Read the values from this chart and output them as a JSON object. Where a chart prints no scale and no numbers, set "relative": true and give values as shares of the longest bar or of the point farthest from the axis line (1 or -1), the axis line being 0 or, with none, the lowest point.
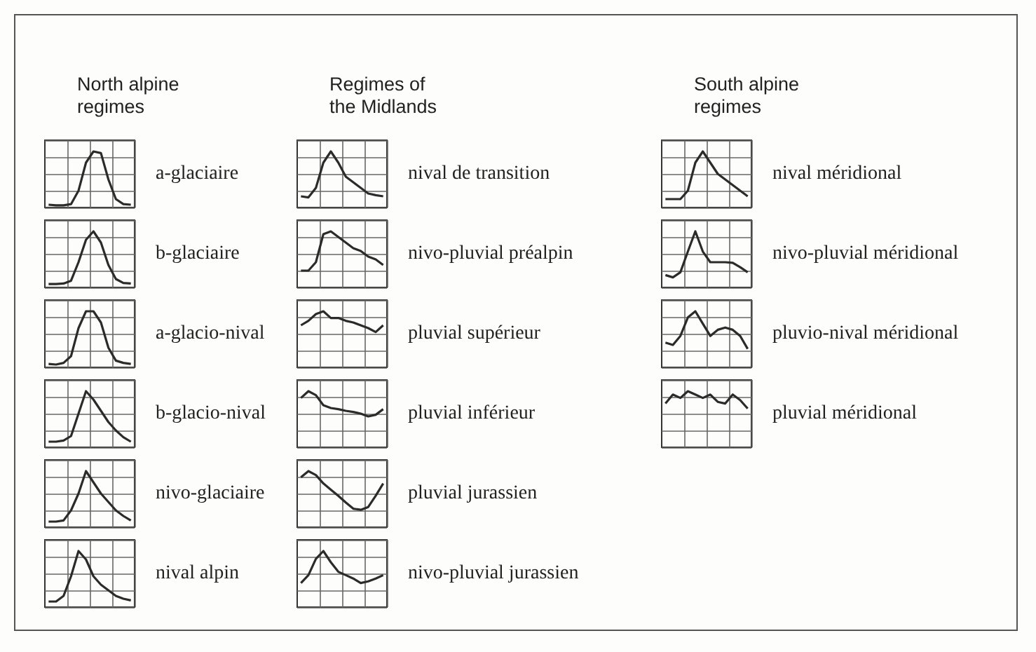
{
  "chart_data": [
    {
      "type": "line",
      "annotations": [
        "North alpine\nregimes"
      ],
      "legend": "right",
      "relative": true,
      "grid": true,
      "marker": "none",
      "categories": [
        null,
        null,
        null,
        null,
        null,
        null,
        null,
        null,
        null,
        null,
        null,
        null
      ],
      "series": [
        {
          "name": "a-glaciaire",
          "color": "#2b2b2b",
          "values": [
            0.05,
            0.04,
            0.04,
            0.06,
            0.3,
            0.8,
            1,
            0.97,
            0.5,
            0.15,
            0.06,
            0.05
          ]
        }
      ]
    },
    {
      "type": "line",
      "legend": "right",
      "relative": true,
      "grid": true,
      "marker": "none",
      "categories": [
        null,
        null,
        null,
        null,
        null,
        null,
        null,
        null,
        null,
        null,
        null,
        null
      ],
      "series": [
        {
          "name": "b-glaciaire",
          "color": "#2b2b2b",
          "values": [
            0.06,
            0.06,
            0.07,
            0.12,
            0.45,
            0.85,
            1,
            0.8,
            0.4,
            0.15,
            0.08,
            0.07
          ]
        }
      ]
    },
    {
      "type": "line",
      "legend": "right",
      "relative": true,
      "grid": true,
      "marker": "none",
      "categories": [
        null,
        null,
        null,
        null,
        null,
        null,
        null,
        null,
        null,
        null,
        null,
        null
      ],
      "series": [
        {
          "name": "a-glacio-nival",
          "color": "#2b2b2b",
          "values": [
            0.06,
            0.05,
            0.08,
            0.2,
            0.7,
            1,
            1,
            0.8,
            0.35,
            0.12,
            0.08,
            0.06
          ]
        }
      ]
    },
    {
      "type": "line",
      "legend": "right",
      "relative": true,
      "grid": true,
      "marker": "none",
      "categories": [
        null,
        null,
        null,
        null,
        null,
        null,
        null,
        null,
        null,
        null,
        null,
        null
      ],
      "series": [
        {
          "name": "b-glacio-nival",
          "color": "#2b2b2b",
          "values": [
            0.1,
            0.1,
            0.12,
            0.2,
            0.6,
            1,
            0.85,
            0.65,
            0.45,
            0.3,
            0.18,
            0.1
          ]
        }
      ]
    },
    {
      "type": "line",
      "legend": "right",
      "relative": true,
      "grid": true,
      "marker": "none",
      "categories": [
        null,
        null,
        null,
        null,
        null,
        null,
        null,
        null,
        null,
        null,
        null,
        null
      ],
      "series": [
        {
          "name": "nivo-glaciaire",
          "color": "#2b2b2b",
          "values": [
            0.1,
            0.1,
            0.12,
            0.3,
            0.6,
            1,
            0.8,
            0.6,
            0.45,
            0.3,
            0.2,
            0.12
          ]
        }
      ]
    },
    {
      "type": "line",
      "legend": "right",
      "relative": true,
      "grid": true,
      "marker": "none",
      "categories": [
        null,
        null,
        null,
        null,
        null,
        null,
        null,
        null,
        null,
        null,
        null,
        null
      ],
      "series": [
        {
          "name": "nival alpin",
          "color": "#2b2b2b",
          "values": [
            0.1,
            0.1,
            0.2,
            0.55,
            1,
            0.85,
            0.55,
            0.4,
            0.3,
            0.2,
            0.15,
            0.12
          ]
        }
      ]
    },
    {
      "type": "line",
      "annotations": [
        "Regimes of\nthe Midlands"
      ],
      "legend": "right",
      "relative": true,
      "grid": true,
      "marker": "none",
      "categories": [
        null,
        null,
        null,
        null,
        null,
        null,
        null,
        null,
        null,
        null,
        null,
        null
      ],
      "series": [
        {
          "name": "nival de transition",
          "color": "#2b2b2b",
          "values": [
            0.2,
            0.18,
            0.35,
            0.8,
            1,
            0.8,
            0.55,
            0.45,
            0.35,
            0.25,
            0.22,
            0.2
          ]
        }
      ]
    },
    {
      "type": "line",
      "legend": "right",
      "relative": true,
      "grid": true,
      "marker": "none",
      "categories": [
        null,
        null,
        null,
        null,
        null,
        null,
        null,
        null,
        null,
        null,
        null,
        null
      ],
      "series": [
        {
          "name": "nivo-pluvial préalpin",
          "color": "#2b2b2b",
          "values": [
            0.3,
            0.3,
            0.45,
            0.95,
            1,
            0.9,
            0.8,
            0.7,
            0.65,
            0.55,
            0.5,
            0.4
          ]
        }
      ]
    },
    {
      "type": "line",
      "legend": "right",
      "relative": true,
      "grid": true,
      "marker": "none",
      "categories": [
        null,
        null,
        null,
        null,
        null,
        null,
        null,
        null,
        null,
        null,
        null,
        null
      ],
      "series": [
        {
          "name": "pluvial supérieur",
          "color": "#2b2b2b",
          "values": [
            0.75,
            0.83,
            0.95,
            1,
            0.88,
            0.88,
            0.83,
            0.8,
            0.75,
            0.7,
            0.63,
            0.75
          ]
        }
      ]
    },
    {
      "type": "line",
      "legend": "right",
      "relative": true,
      "grid": true,
      "marker": "none",
      "categories": [
        null,
        null,
        null,
        null,
        null,
        null,
        null,
        null,
        null,
        null,
        null,
        null
      ],
      "series": [
        {
          "name": "pluvial inférieur",
          "color": "#2b2b2b",
          "values": [
            0.88,
            1,
            0.93,
            0.75,
            0.7,
            0.68,
            0.65,
            0.63,
            0.6,
            0.55,
            0.58,
            0.68
          ]
        }
      ]
    },
    {
      "type": "line",
      "legend": "right",
      "relative": true,
      "grid": true,
      "marker": "none",
      "categories": [
        null,
        null,
        null,
        null,
        null,
        null,
        null,
        null,
        null,
        null,
        null,
        null
      ],
      "series": [
        {
          "name": "pluvial jurassien",
          "color": "#2b2b2b",
          "values": [
            0.89,
            1,
            0.93,
            0.78,
            0.67,
            0.56,
            0.44,
            0.33,
            0.31,
            0.36,
            0.56,
            0.78
          ]
        }
      ]
    },
    {
      "type": "line",
      "legend": "right",
      "relative": true,
      "grid": true,
      "marker": "none",
      "categories": [
        null,
        null,
        null,
        null,
        null,
        null,
        null,
        null,
        null,
        null,
        null,
        null
      ],
      "series": [
        {
          "name": "nivo-pluvial jurassien",
          "color": "#2b2b2b",
          "values": [
            0.43,
            0.57,
            0.86,
            1,
            0.8,
            0.63,
            0.57,
            0.51,
            0.43,
            0.46,
            0.51,
            0.57
          ]
        }
      ]
    },
    {
      "type": "line",
      "annotations": [
        "South alpine\nregimes"
      ],
      "legend": "right",
      "relative": true,
      "grid": true,
      "marker": "none",
      "categories": [
        null,
        null,
        null,
        null,
        null,
        null,
        null,
        null,
        null,
        null,
        null,
        null
      ],
      "series": [
        {
          "name": "nival méridional",
          "color": "#2b2b2b",
          "values": [
            0.15,
            0.15,
            0.15,
            0.3,
            0.8,
            1,
            0.8,
            0.6,
            0.5,
            0.4,
            0.3,
            0.2
          ]
        }
      ]
    },
    {
      "type": "line",
      "legend": "right",
      "relative": true,
      "grid": true,
      "marker": "none",
      "categories": [
        null,
        null,
        null,
        null,
        null,
        null,
        null,
        null,
        null,
        null,
        null,
        null
      ],
      "series": [
        {
          "name": "nivo-pluvial méridional",
          "color": "#2b2b2b",
          "values": [
            0.22,
            0.18,
            0.27,
            0.64,
            1,
            0.64,
            0.45,
            0.45,
            0.45,
            0.44,
            0.36,
            0.27
          ]
        }
      ]
    },
    {
      "type": "line",
      "legend": "right",
      "relative": true,
      "grid": true,
      "marker": "none",
      "categories": [
        null,
        null,
        null,
        null,
        null,
        null,
        null,
        null,
        null,
        null,
        null,
        null
      ],
      "series": [
        {
          "name": "pluvio-nival méridional",
          "color": "#2b2b2b",
          "values": [
            0.44,
            0.4,
            0.56,
            0.89,
            1,
            0.78,
            0.56,
            0.67,
            0.71,
            0.67,
            0.56,
            0.33
          ]
        }
      ]
    },
    {
      "type": "line",
      "legend": "right",
      "relative": true,
      "grid": true,
      "marker": "none",
      "categories": [
        null,
        null,
        null,
        null,
        null,
        null,
        null,
        null,
        null,
        null,
        null,
        null
      ],
      "series": [
        {
          "name": "pluvial méridional",
          "color": "#2b2b2b",
          "values": [
            0.78,
            0.94,
            0.88,
            1,
            0.94,
            0.88,
            0.94,
            0.81,
            0.78,
            0.94,
            0.84,
            0.69
          ]
        }
      ]
    }
  ]
}
